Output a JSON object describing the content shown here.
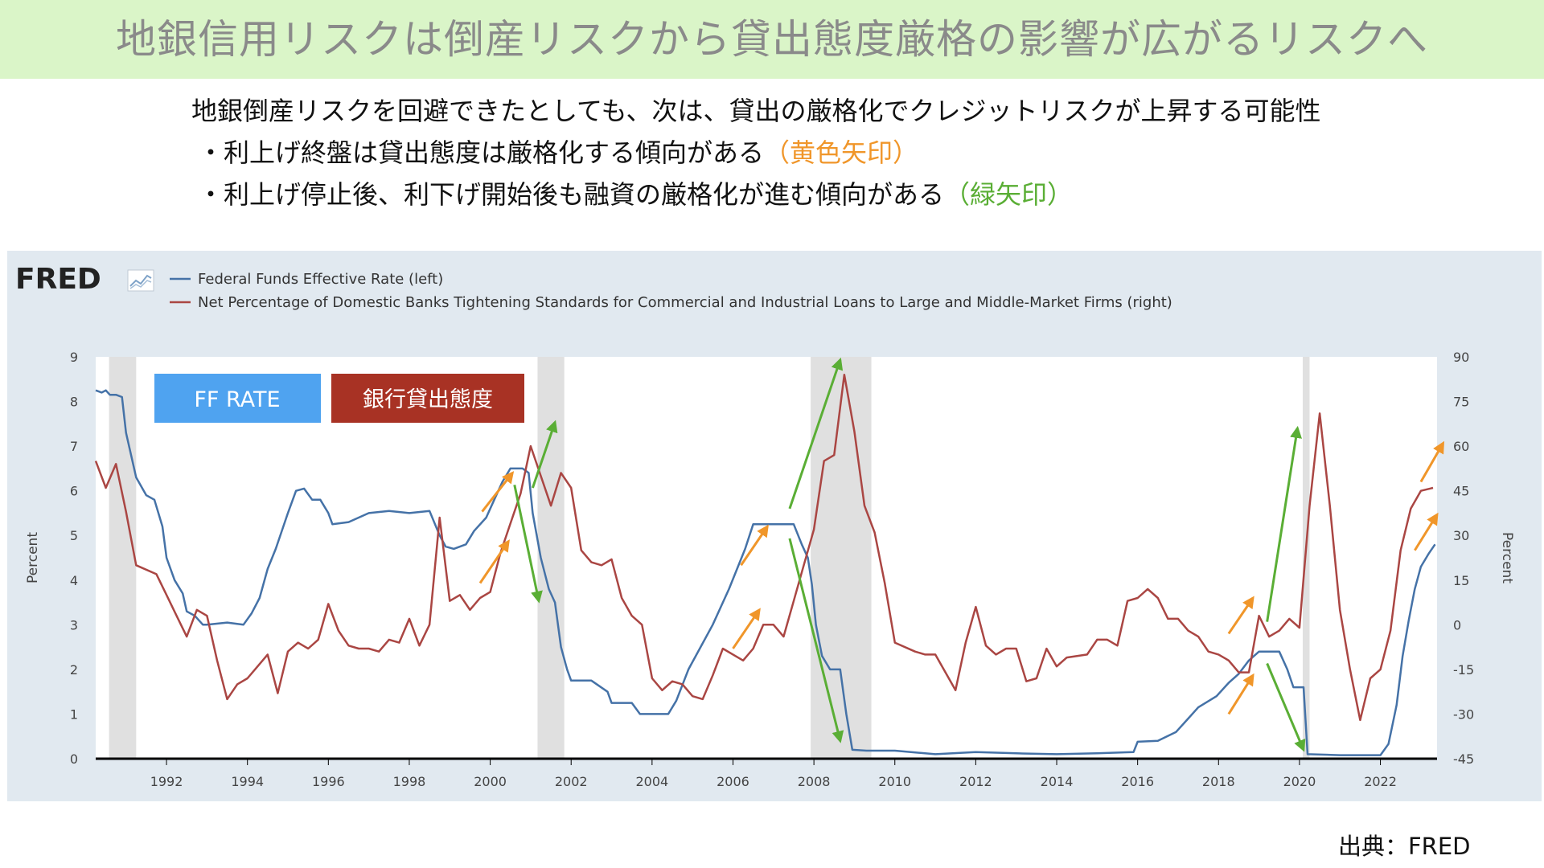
{
  "header": {
    "title": "地銀信用リスクは倒産リスクから貸出態度厳格の影響が広がるリスクへ"
  },
  "intro": {
    "main": "地銀倒産リスクを回避できたとしても、次は、貸出の厳格化でクレジットリスクが上昇する可能性",
    "bullet1_text": "・利上げ終盤は貸出態度は厳格化する傾向がある",
    "bullet1_note": "（黄色矢印）",
    "bullet2_text": "・利上げ停止後、利下げ開始後も融資の厳格化が進む傾向がある",
    "bullet2_note": "（緑矢印）"
  },
  "fred": {
    "logo": "FRED",
    "legend": [
      "Federal Funds Effective Rate (left)",
      "Net Percentage of Domestic Banks Tightening Standards for Commercial and Industrial Loans to Large and Middle-Market Firms (right)"
    ],
    "left_axis_label": "Percent",
    "right_axis_label": "Percent"
  },
  "labels": {
    "ff_rate": "FF RATE",
    "bank_lending": "銀行貸出態度"
  },
  "source": "出典：FRED",
  "colors": {
    "ff_line": "#4572a7",
    "tightening_line": "#aa4643",
    "yellow_arrow": "#f0962a",
    "green_arrow": "#5aae35",
    "ff_box": "#4fa3f0",
    "bank_box": "#a83224",
    "recession": "#e0e0e0",
    "banner_bg": "#daf5c8"
  },
  "chart_data": {
    "type": "line",
    "xlim": [
      1990.25,
      2023.4
    ],
    "ylim_left": [
      0,
      9
    ],
    "ylim_right": [
      -45,
      90
    ],
    "left_ticks": [
      "0",
      "1",
      "2",
      "3",
      "4",
      "5",
      "6",
      "7",
      "8",
      "9"
    ],
    "right_ticks": [
      "-45",
      "-30",
      "-15",
      "0",
      "15",
      "30",
      "45",
      "60",
      "75",
      "90"
    ],
    "x_ticks": [
      "1992",
      "1994",
      "1996",
      "1998",
      "2000",
      "2002",
      "2004",
      "2006",
      "2008",
      "2010",
      "2012",
      "2014",
      "2016",
      "2018",
      "2020",
      "2022"
    ],
    "recessions": [
      [
        1990.58,
        1991.25
      ],
      [
        2001.17,
        2001.83
      ],
      [
        2007.92,
        2009.42
      ],
      [
        2020.08,
        2020.25
      ]
    ],
    "series": [
      {
        "name": "Federal Funds Effective Rate (left)",
        "axis": "left",
        "points": [
          [
            1990.25,
            8.25
          ],
          [
            1990.4,
            8.2
          ],
          [
            1990.5,
            8.25
          ],
          [
            1990.6,
            8.15
          ],
          [
            1990.75,
            8.15
          ],
          [
            1990.9,
            8.1
          ],
          [
            1991.0,
            7.3
          ],
          [
            1991.25,
            6.3
          ],
          [
            1991.5,
            5.9
          ],
          [
            1991.7,
            5.8
          ],
          [
            1991.9,
            5.2
          ],
          [
            1992.0,
            4.5
          ],
          [
            1992.2,
            4.0
          ],
          [
            1992.4,
            3.7
          ],
          [
            1992.5,
            3.3
          ],
          [
            1992.7,
            3.2
          ],
          [
            1992.9,
            3.0
          ],
          [
            1993.0,
            3.0
          ],
          [
            1993.5,
            3.05
          ],
          [
            1993.9,
            3.0
          ],
          [
            1994.1,
            3.25
          ],
          [
            1994.3,
            3.6
          ],
          [
            1994.5,
            4.25
          ],
          [
            1994.7,
            4.7
          ],
          [
            1995.0,
            5.5
          ],
          [
            1995.2,
            6.0
          ],
          [
            1995.4,
            6.05
          ],
          [
            1995.6,
            5.8
          ],
          [
            1995.8,
            5.8
          ],
          [
            1996.0,
            5.5
          ],
          [
            1996.1,
            5.25
          ],
          [
            1996.5,
            5.3
          ],
          [
            1997.0,
            5.5
          ],
          [
            1997.5,
            5.55
          ],
          [
            1998.0,
            5.5
          ],
          [
            1998.5,
            5.55
          ],
          [
            1998.75,
            5.0
          ],
          [
            1998.9,
            4.75
          ],
          [
            1999.1,
            4.7
          ],
          [
            1999.4,
            4.8
          ],
          [
            1999.6,
            5.1
          ],
          [
            1999.9,
            5.4
          ],
          [
            2000.1,
            5.8
          ],
          [
            2000.3,
            6.2
          ],
          [
            2000.5,
            6.5
          ],
          [
            2000.8,
            6.5
          ],
          [
            2000.95,
            6.4
          ],
          [
            2001.05,
            5.5
          ],
          [
            2001.25,
            4.5
          ],
          [
            2001.45,
            3.8
          ],
          [
            2001.6,
            3.5
          ],
          [
            2001.75,
            2.5
          ],
          [
            2001.9,
            2.0
          ],
          [
            2002.0,
            1.75
          ],
          [
            2002.5,
            1.75
          ],
          [
            2002.9,
            1.5
          ],
          [
            2003.0,
            1.25
          ],
          [
            2003.5,
            1.25
          ],
          [
            2003.7,
            1.0
          ],
          [
            2004.0,
            1.0
          ],
          [
            2004.4,
            1.0
          ],
          [
            2004.6,
            1.3
          ],
          [
            2004.9,
            2.0
          ],
          [
            2005.2,
            2.5
          ],
          [
            2005.5,
            3.0
          ],
          [
            2005.9,
            3.8
          ],
          [
            2006.3,
            4.7
          ],
          [
            2006.5,
            5.25
          ],
          [
            2007.0,
            5.25
          ],
          [
            2007.5,
            5.25
          ],
          [
            2007.7,
            4.8
          ],
          [
            2007.85,
            4.5
          ],
          [
            2007.95,
            3.9
          ],
          [
            2008.05,
            3.0
          ],
          [
            2008.2,
            2.3
          ],
          [
            2008.4,
            2.0
          ],
          [
            2008.65,
            2.0
          ],
          [
            2008.8,
            1.0
          ],
          [
            2008.95,
            0.2
          ],
          [
            2009.3,
            0.18
          ],
          [
            2010.0,
            0.18
          ],
          [
            2011.0,
            0.1
          ],
          [
            2012.0,
            0.15
          ],
          [
            2013.0,
            0.12
          ],
          [
            2014.0,
            0.1
          ],
          [
            2015.0,
            0.12
          ],
          [
            2015.9,
            0.15
          ],
          [
            2016.0,
            0.38
          ],
          [
            2016.5,
            0.4
          ],
          [
            2016.95,
            0.6
          ],
          [
            2017.25,
            0.9
          ],
          [
            2017.5,
            1.15
          ],
          [
            2017.95,
            1.4
          ],
          [
            2018.25,
            1.7
          ],
          [
            2018.5,
            1.9
          ],
          [
            2018.75,
            2.2
          ],
          [
            2019.0,
            2.4
          ],
          [
            2019.5,
            2.4
          ],
          [
            2019.7,
            2.0
          ],
          [
            2019.85,
            1.6
          ],
          [
            2020.1,
            1.6
          ],
          [
            2020.2,
            0.1
          ],
          [
            2021.0,
            0.08
          ],
          [
            2022.0,
            0.08
          ],
          [
            2022.2,
            0.33
          ],
          [
            2022.4,
            1.2
          ],
          [
            2022.55,
            2.3
          ],
          [
            2022.7,
            3.1
          ],
          [
            2022.85,
            3.8
          ],
          [
            2023.0,
            4.3
          ],
          [
            2023.2,
            4.6
          ],
          [
            2023.35,
            4.8
          ]
        ]
      },
      {
        "name": "Net Percentage of Domestic Banks Tightening Standards for Commercial and Industrial Loans to Large and Middle-Market Firms (right)",
        "axis": "right",
        "points": [
          [
            1990.25,
            55
          ],
          [
            1990.5,
            46
          ],
          [
            1990.75,
            54
          ],
          [
            1991.0,
            38
          ],
          [
            1991.25,
            20
          ],
          [
            1991.75,
            17
          ],
          [
            1992.0,
            10
          ],
          [
            1992.25,
            3
          ],
          [
            1992.5,
            -4
          ],
          [
            1992.75,
            5
          ],
          [
            1993.0,
            3
          ],
          [
            1993.25,
            -12
          ],
          [
            1993.5,
            -25
          ],
          [
            1993.75,
            -20
          ],
          [
            1994.0,
            -18
          ],
          [
            1994.25,
            -14
          ],
          [
            1994.5,
            -10
          ],
          [
            1994.75,
            -23
          ],
          [
            1995.0,
            -9
          ],
          [
            1995.25,
            -6
          ],
          [
            1995.5,
            -8
          ],
          [
            1995.75,
            -5
          ],
          [
            1996.0,
            7
          ],
          [
            1996.25,
            -2
          ],
          [
            1996.5,
            -7
          ],
          [
            1996.75,
            -8
          ],
          [
            1997.0,
            -8
          ],
          [
            1997.25,
            -9
          ],
          [
            1997.5,
            -5
          ],
          [
            1997.75,
            -6
          ],
          [
            1998.0,
            2
          ],
          [
            1998.25,
            -7
          ],
          [
            1998.5,
            0
          ],
          [
            1998.75,
            36
          ],
          [
            1999.0,
            8
          ],
          [
            1999.25,
            10
          ],
          [
            1999.5,
            5
          ],
          [
            1999.75,
            9
          ],
          [
            2000.0,
            11
          ],
          [
            2000.25,
            24
          ],
          [
            2000.5,
            34
          ],
          [
            2000.75,
            44
          ],
          [
            2001.0,
            60
          ],
          [
            2001.25,
            50
          ],
          [
            2001.5,
            40
          ],
          [
            2001.75,
            51
          ],
          [
            2002.0,
            46
          ],
          [
            2002.25,
            25
          ],
          [
            2002.5,
            21
          ],
          [
            2002.75,
            20
          ],
          [
            2003.0,
            22
          ],
          [
            2003.25,
            9
          ],
          [
            2003.5,
            3
          ],
          [
            2003.75,
            0
          ],
          [
            2004.0,
            -18
          ],
          [
            2004.25,
            -22
          ],
          [
            2004.5,
            -19
          ],
          [
            2004.75,
            -20
          ],
          [
            2005.0,
            -24
          ],
          [
            2005.25,
            -25
          ],
          [
            2005.5,
            -17
          ],
          [
            2005.75,
            -8
          ],
          [
            2006.0,
            -10
          ],
          [
            2006.25,
            -12
          ],
          [
            2006.5,
            -8
          ],
          [
            2006.75,
            0
          ],
          [
            2007.0,
            0
          ],
          [
            2007.25,
            -4
          ],
          [
            2007.5,
            8
          ],
          [
            2007.75,
            20
          ],
          [
            2008.0,
            32
          ],
          [
            2008.25,
            55
          ],
          [
            2008.5,
            57
          ],
          [
            2008.75,
            84
          ],
          [
            2009.0,
            65
          ],
          [
            2009.25,
            40
          ],
          [
            2009.5,
            31
          ],
          [
            2009.75,
            14
          ],
          [
            2010.0,
            -6
          ],
          [
            2010.5,
            -9
          ],
          [
            2010.75,
            -10
          ],
          [
            2011.0,
            -10
          ],
          [
            2011.25,
            -16
          ],
          [
            2011.5,
            -22
          ],
          [
            2011.75,
            -6
          ],
          [
            2012.0,
            6
          ],
          [
            2012.25,
            -7
          ],
          [
            2012.5,
            -10
          ],
          [
            2012.75,
            -8
          ],
          [
            2013.0,
            -8
          ],
          [
            2013.25,
            -19
          ],
          [
            2013.5,
            -18
          ],
          [
            2013.75,
            -8
          ],
          [
            2014.0,
            -14
          ],
          [
            2014.25,
            -11
          ],
          [
            2014.75,
            -10
          ],
          [
            2015.0,
            -5
          ],
          [
            2015.25,
            -5
          ],
          [
            2015.5,
            -7
          ],
          [
            2015.75,
            8
          ],
          [
            2016.0,
            9
          ],
          [
            2016.25,
            12
          ],
          [
            2016.5,
            9
          ],
          [
            2016.75,
            2
          ],
          [
            2017.0,
            2
          ],
          [
            2017.25,
            -2
          ],
          [
            2017.5,
            -4
          ],
          [
            2017.75,
            -9
          ],
          [
            2018.0,
            -10
          ],
          [
            2018.25,
            -12
          ],
          [
            2018.5,
            -16
          ],
          [
            2018.75,
            -16
          ],
          [
            2019.0,
            3
          ],
          [
            2019.25,
            -4
          ],
          [
            2019.5,
            -2
          ],
          [
            2019.75,
            2
          ],
          [
            2020.0,
            -1
          ],
          [
            2020.25,
            40
          ],
          [
            2020.5,
            71
          ],
          [
            2020.75,
            40
          ],
          [
            2021.0,
            5
          ],
          [
            2021.25,
            -15
          ],
          [
            2021.5,
            -32
          ],
          [
            2021.75,
            -18
          ],
          [
            2022.0,
            -15
          ],
          [
            2022.25,
            -2
          ],
          [
            2022.5,
            25
          ],
          [
            2022.75,
            39
          ],
          [
            2023.0,
            45
          ],
          [
            2023.3,
            46
          ]
        ]
      }
    ],
    "annotations": {
      "yellow_arrows": [
        [
          [
            1999.8,
            38
          ],
          [
            2000.55,
            51
          ]
        ],
        [
          [
            1999.75,
            14
          ],
          [
            2000.45,
            28
          ]
        ],
        [
          [
            2006.2,
            20
          ],
          [
            2006.85,
            33
          ]
        ],
        [
          [
            2006.0,
            -8
          ],
          [
            2006.65,
            5
          ]
        ],
        [
          [
            2018.25,
            -3
          ],
          [
            2018.85,
            9
          ]
        ],
        [
          [
            2018.25,
            -30
          ],
          [
            2018.85,
            -17
          ]
        ],
        [
          [
            2022.85,
            25
          ],
          [
            2023.4,
            37
          ]
        ],
        [
          [
            2023.0,
            48
          ],
          [
            2023.55,
            61
          ]
        ]
      ],
      "green_arrows": [
        [
          [
            2001.05,
            46
          ],
          [
            2001.6,
            68
          ]
        ],
        [
          [
            2000.6,
            47
          ],
          [
            2001.2,
            8
          ]
        ],
        [
          [
            2007.4,
            39
          ],
          [
            2008.65,
            89
          ]
        ],
        [
          [
            2007.4,
            29
          ],
          [
            2008.65,
            -39
          ]
        ],
        [
          [
            2019.2,
            1
          ],
          [
            2019.95,
            66
          ]
        ],
        [
          [
            2019.2,
            -13
          ],
          [
            2020.1,
            -42
          ]
        ]
      ]
    }
  }
}
